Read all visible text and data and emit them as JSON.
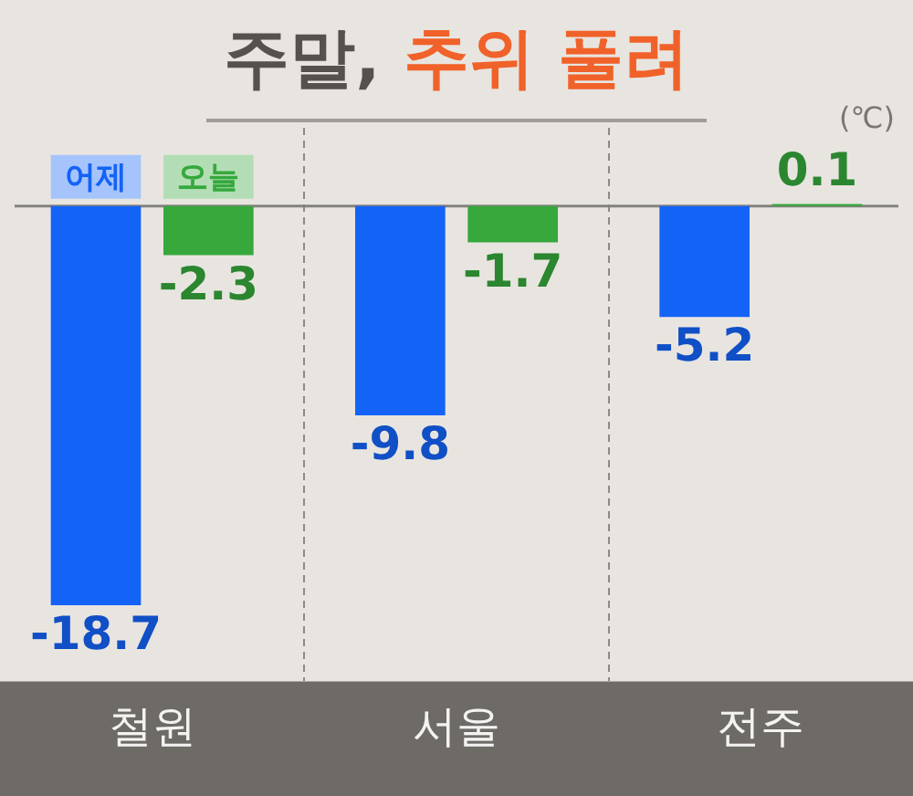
{
  "chart_data": {
    "type": "bar",
    "title": "주말, 추위 풀려",
    "ylabel": "(℃)",
    "categories": [
      "철원",
      "서울",
      "전주"
    ],
    "series": [
      {
        "name": "어제",
        "color": "#1463f7",
        "values": [
          -18.7,
          -9.8,
          -5.2
        ]
      },
      {
        "name": "오늘",
        "color": "#36a83c",
        "values": [
          -2.3,
          -1.7,
          0.1
        ]
      }
    ],
    "data_labels": true,
    "legend": "top left",
    "grid": "x"
  }
}
